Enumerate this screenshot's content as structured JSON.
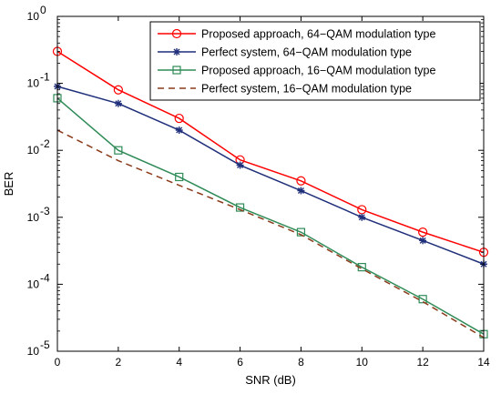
{
  "chart_data": {
    "type": "line",
    "title": "",
    "xlabel": "SNR (dB)",
    "ylabel": "BER",
    "x_ticks": [
      0,
      2,
      4,
      6,
      8,
      10,
      12,
      14
    ],
    "xlim": [
      0,
      14
    ],
    "yscale": "log",
    "ylim": [
      1e-05,
      1
    ],
    "y_ticks": [
      {
        "value": 1,
        "base": "10",
        "exp": "0"
      },
      {
        "value": 0.1,
        "base": "10",
        "exp": "-1"
      },
      {
        "value": 0.01,
        "base": "10",
        "exp": "-2"
      },
      {
        "value": 0.001,
        "base": "10",
        "exp": "-3"
      },
      {
        "value": 0.0001,
        "base": "10",
        "exp": "-4"
      },
      {
        "value": 1e-05,
        "base": "10",
        "exp": "-5"
      }
    ],
    "legend_position": "top-right",
    "x": [
      0,
      2,
      4,
      6,
      8,
      10,
      12,
      14
    ],
    "series": [
      {
        "name": "Proposed approach, 64−QAM modulation type",
        "color": "#ff0000",
        "marker": "circle",
        "dash": "solid",
        "values": [
          0.3,
          0.08,
          0.03,
          0.0072,
          0.0035,
          0.0013,
          0.0006,
          0.0003
        ]
      },
      {
        "name": "Perfect system, 64−QAM modulation type",
        "color": "#1f2f7a",
        "marker": "star",
        "dash": "solid",
        "values": [
          0.09,
          0.05,
          0.02,
          0.006,
          0.0025,
          0.001,
          0.00045,
          0.0002
        ]
      },
      {
        "name": "Proposed approach, 16−QAM modulation type",
        "color": "#2e8b57",
        "marker": "square",
        "dash": "solid",
        "values": [
          0.06,
          0.01,
          0.004,
          0.0014,
          0.0006,
          0.00018,
          6e-05,
          1.8e-05
        ]
      },
      {
        "name": "Perfect system, 16−QAM modulation type",
        "color": "#8b3a1a",
        "marker": "none",
        "dash": "dashed",
        "values": [
          0.02,
          0.007,
          0.003,
          0.0013,
          0.00055,
          0.00017,
          5.5e-05,
          1.6e-05
        ]
      }
    ]
  }
}
